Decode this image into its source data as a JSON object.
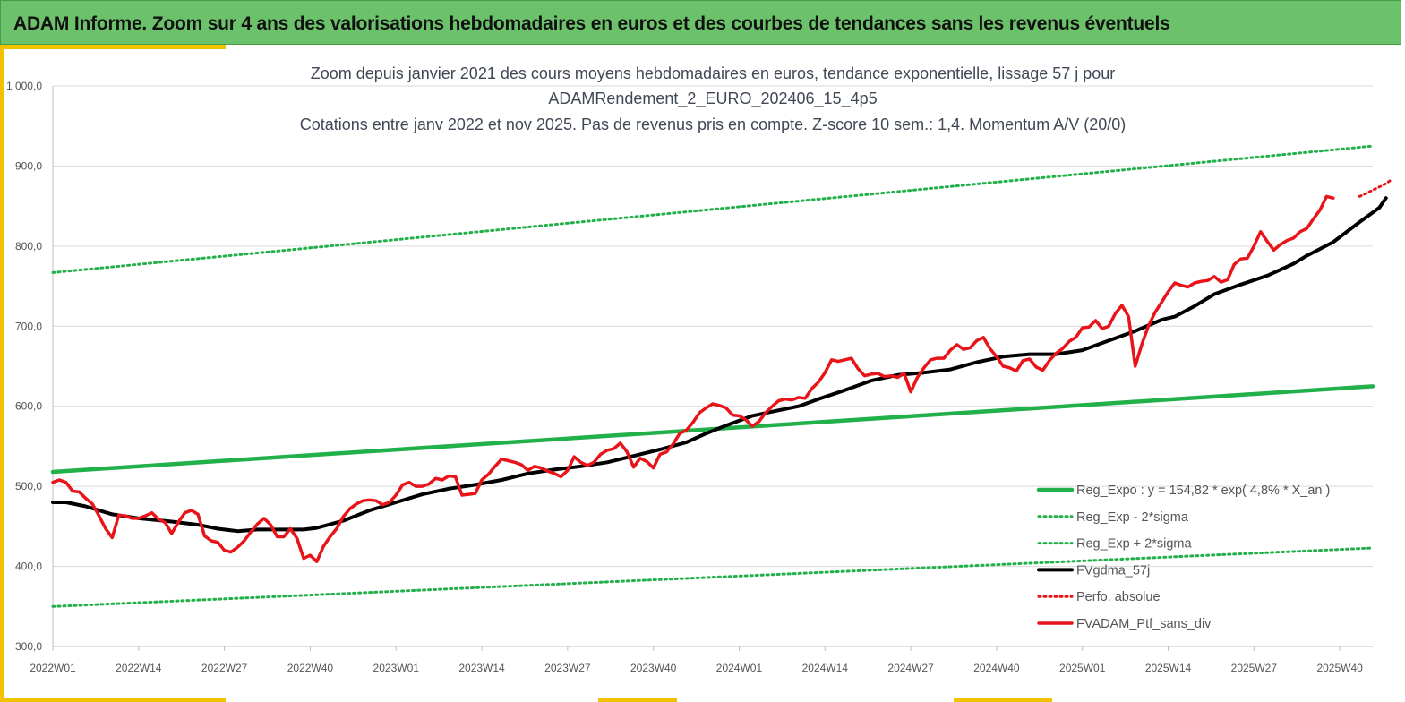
{
  "header": {
    "title": "ADAM Informe. Zoom sur 4 ans des valorisations hebdomadaires en euros et des courbes de tendances sans les revenus éventuels"
  },
  "colors": {
    "banner": "#6cc26a",
    "accent": "#f2c200",
    "reg_expo": "#22b04b",
    "fvgdma": "#000000",
    "ptf": "#e8141a",
    "perfo": "#e8141a"
  },
  "chart_data": {
    "type": "line",
    "title_lines": [
      "Zoom depuis janvier 2021 des cours moyens hebdomadaires  en euros, tendance exponentielle, lissage 57 j pour",
      "ADAMRendement_2_EURO_202406_15_4p5",
      "Cotations  entre janv 2022 et nov 2025. Pas de revenus pris en compte. Z-score 10 sem.: 1,4. Momentum A/V (20/0)"
    ],
    "xlabel": "",
    "ylabel": "",
    "ylim": [
      300,
      1000
    ],
    "yticks": [
      "300,0",
      "400,0",
      "500,0",
      "600,0",
      "700,0",
      "800,0",
      "900,0",
      "1 000,0"
    ],
    "x_range_weeks": [
      0,
      200
    ],
    "xticks": [
      {
        "w": 0,
        "label": "2022W01"
      },
      {
        "w": 13,
        "label": "2022W14"
      },
      {
        "w": 26,
        "label": "2022W27"
      },
      {
        "w": 39,
        "label": "2022W40"
      },
      {
        "w": 52,
        "label": "2023W01"
      },
      {
        "w": 65,
        "label": "2023W14"
      },
      {
        "w": 78,
        "label": "2023W27"
      },
      {
        "w": 91,
        "label": "2023W40"
      },
      {
        "w": 104,
        "label": "2024W01"
      },
      {
        "w": 117,
        "label": "2024W14"
      },
      {
        "w": 130,
        "label": "2024W27"
      },
      {
        "w": 143,
        "label": "2024W40"
      },
      {
        "w": 156,
        "label": "2025W01"
      },
      {
        "w": 169,
        "label": "2025W14"
      },
      {
        "w": 182,
        "label": "2025W27"
      },
      {
        "w": 195,
        "label": "2025W40"
      }
    ],
    "grid": "horizontal",
    "legend_position": "bottom-right",
    "series": [
      {
        "name": "Reg_Expo : y = 154,82 * exp( 4,8% *  X_an )",
        "style": "solid-green",
        "points": [
          [
            0,
            518
          ],
          [
            200,
            625
          ]
        ]
      },
      {
        "name": "Reg_Exp - 2*sigma",
        "style": "dotted-green",
        "points": [
          [
            0,
            350
          ],
          [
            200,
            423
          ]
        ]
      },
      {
        "name": "Reg_Exp + 2*sigma",
        "style": "dotted-green",
        "points": [
          [
            0,
            767
          ],
          [
            200,
            925
          ]
        ]
      },
      {
        "name": "FVgdma_57j",
        "style": "solid-black",
        "points": [
          [
            0,
            480
          ],
          [
            2,
            480
          ],
          [
            5,
            475
          ],
          [
            9,
            465
          ],
          [
            13,
            460
          ],
          [
            18,
            456
          ],
          [
            22,
            452
          ],
          [
            25,
            447
          ],
          [
            28,
            444
          ],
          [
            31,
            446
          ],
          [
            35,
            446
          ],
          [
            38,
            446
          ],
          [
            40,
            448
          ],
          [
            44,
            457
          ],
          [
            48,
            470
          ],
          [
            52,
            480
          ],
          [
            56,
            490
          ],
          [
            60,
            497
          ],
          [
            64,
            502
          ],
          [
            68,
            508
          ],
          [
            72,
            516
          ],
          [
            76,
            521
          ],
          [
            80,
            525
          ],
          [
            84,
            530
          ],
          [
            88,
            538
          ],
          [
            92,
            546
          ],
          [
            96,
            555
          ],
          [
            99,
            566
          ],
          [
            102,
            576
          ],
          [
            106,
            588
          ],
          [
            110,
            595
          ],
          [
            113,
            600
          ],
          [
            116,
            609
          ],
          [
            120,
            620
          ],
          [
            124,
            632
          ],
          [
            128,
            639
          ],
          [
            132,
            642
          ],
          [
            136,
            646
          ],
          [
            140,
            655
          ],
          [
            144,
            662
          ],
          [
            148,
            665
          ],
          [
            152,
            665
          ],
          [
            156,
            670
          ],
          [
            160,
            682
          ],
          [
            164,
            694
          ],
          [
            168,
            708
          ],
          [
            170,
            712
          ],
          [
            173,
            725
          ],
          [
            176,
            740
          ],
          [
            180,
            752
          ],
          [
            184,
            763
          ],
          [
            188,
            778
          ],
          [
            190,
            788
          ],
          [
            194,
            805
          ],
          [
            198,
            830
          ],
          [
            201,
            848
          ],
          [
            202,
            860
          ]
        ]
      },
      {
        "name": "Perfo. absolue",
        "style": "dotted-red",
        "points": [
          [
            198,
            862
          ],
          [
            200,
            870
          ],
          [
            202,
            878
          ],
          [
            203,
            884
          ]
        ]
      },
      {
        "name": "FVADAM_Ptf_sans_div",
        "style": "solid-red",
        "points": [
          [
            0,
            505
          ],
          [
            1,
            508
          ],
          [
            2,
            505
          ],
          [
            3,
            494
          ],
          [
            4,
            493
          ],
          [
            5,
            485
          ],
          [
            6,
            478
          ],
          [
            7,
            463
          ],
          [
            8,
            447
          ],
          [
            9,
            436
          ],
          [
            10,
            464
          ],
          [
            11,
            463
          ],
          [
            12,
            460
          ],
          [
            13,
            460
          ],
          [
            14,
            463
          ],
          [
            15,
            467
          ],
          [
            16,
            459
          ],
          [
            17,
            455
          ],
          [
            18,
            441
          ],
          [
            19,
            455
          ],
          [
            20,
            467
          ],
          [
            21,
            470
          ],
          [
            22,
            465
          ],
          [
            23,
            438
          ],
          [
            24,
            432
          ],
          [
            25,
            430
          ],
          [
            26,
            420
          ],
          [
            27,
            418
          ],
          [
            28,
            424
          ],
          [
            29,
            432
          ],
          [
            30,
            443
          ],
          [
            31,
            453
          ],
          [
            32,
            460
          ],
          [
            33,
            452
          ],
          [
            34,
            437
          ],
          [
            35,
            437
          ],
          [
            36,
            447
          ],
          [
            37,
            435
          ],
          [
            38,
            410
          ],
          [
            39,
            414
          ],
          [
            40,
            406
          ],
          [
            41,
            425
          ],
          [
            42,
            437
          ],
          [
            43,
            447
          ],
          [
            44,
            462
          ],
          [
            45,
            472
          ],
          [
            46,
            478
          ],
          [
            47,
            482
          ],
          [
            48,
            483
          ],
          [
            49,
            482
          ],
          [
            50,
            477
          ],
          [
            51,
            480
          ],
          [
            52,
            489
          ],
          [
            53,
            502
          ],
          [
            54,
            505
          ],
          [
            55,
            500
          ],
          [
            56,
            500
          ],
          [
            57,
            503
          ],
          [
            58,
            510
          ],
          [
            59,
            508
          ],
          [
            60,
            513
          ],
          [
            61,
            512
          ],
          [
            62,
            489
          ],
          [
            63,
            490
          ],
          [
            64,
            491
          ],
          [
            65,
            508
          ],
          [
            66,
            515
          ],
          [
            67,
            525
          ],
          [
            68,
            534
          ],
          [
            69,
            532
          ],
          [
            70,
            530
          ],
          [
            71,
            527
          ],
          [
            72,
            520
          ],
          [
            73,
            525
          ],
          [
            74,
            523
          ],
          [
            75,
            519
          ],
          [
            76,
            516
          ],
          [
            77,
            512
          ],
          [
            78,
            520
          ],
          [
            79,
            537
          ],
          [
            80,
            530
          ],
          [
            81,
            526
          ],
          [
            82,
            530
          ],
          [
            83,
            540
          ],
          [
            84,
            545
          ],
          [
            85,
            547
          ],
          [
            86,
            554
          ],
          [
            87,
            543
          ],
          [
            88,
            524
          ],
          [
            89,
            535
          ],
          [
            90,
            531
          ],
          [
            91,
            523
          ],
          [
            92,
            540
          ],
          [
            93,
            543
          ],
          [
            94,
            553
          ],
          [
            95,
            566
          ],
          [
            96,
            570
          ],
          [
            97,
            580
          ],
          [
            98,
            592
          ],
          [
            99,
            598
          ],
          [
            100,
            603
          ],
          [
            101,
            601
          ],
          [
            102,
            598
          ],
          [
            103,
            589
          ],
          [
            104,
            588
          ],
          [
            105,
            583
          ],
          [
            106,
            575
          ],
          [
            107,
            581
          ],
          [
            108,
            592
          ],
          [
            109,
            600
          ],
          [
            110,
            607
          ],
          [
            111,
            609
          ],
          [
            112,
            608
          ],
          [
            113,
            611
          ],
          [
            114,
            610
          ],
          [
            115,
            622
          ],
          [
            116,
            630
          ],
          [
            117,
            642
          ],
          [
            118,
            658
          ],
          [
            119,
            656
          ],
          [
            120,
            658
          ],
          [
            121,
            660
          ],
          [
            122,
            647
          ],
          [
            123,
            638
          ],
          [
            124,
            640
          ],
          [
            125,
            641
          ],
          [
            126,
            637
          ],
          [
            127,
            638
          ],
          [
            128,
            636
          ],
          [
            129,
            641
          ],
          [
            130,
            618
          ],
          [
            131,
            636
          ],
          [
            132,
            648
          ],
          [
            133,
            658
          ],
          [
            134,
            660
          ],
          [
            135,
            660
          ],
          [
            136,
            670
          ],
          [
            137,
            677
          ],
          [
            138,
            671
          ],
          [
            139,
            673
          ],
          [
            140,
            682
          ],
          [
            141,
            686
          ],
          [
            142,
            672
          ],
          [
            143,
            662
          ],
          [
            144,
            650
          ],
          [
            145,
            648
          ],
          [
            146,
            644
          ],
          [
            147,
            657
          ],
          [
            148,
            659
          ],
          [
            149,
            649
          ],
          [
            150,
            645
          ],
          [
            151,
            657
          ],
          [
            152,
            666
          ],
          [
            153,
            672
          ],
          [
            154,
            681
          ],
          [
            155,
            686
          ],
          [
            156,
            698
          ],
          [
            157,
            699
          ],
          [
            158,
            707
          ],
          [
            159,
            697
          ],
          [
            160,
            700
          ],
          [
            161,
            716
          ],
          [
            162,
            726
          ],
          [
            163,
            712
          ],
          [
            164,
            650
          ],
          [
            165,
            677
          ],
          [
            166,
            700
          ],
          [
            167,
            717
          ],
          [
            168,
            730
          ],
          [
            169,
            743
          ],
          [
            170,
            754
          ],
          [
            171,
            751
          ],
          [
            172,
            749
          ],
          [
            173,
            754
          ],
          [
            174,
            756
          ],
          [
            175,
            757
          ],
          [
            176,
            762
          ],
          [
            177,
            755
          ],
          [
            178,
            758
          ],
          [
            179,
            777
          ],
          [
            180,
            784
          ],
          [
            181,
            785
          ],
          [
            182,
            800
          ],
          [
            183,
            818
          ],
          [
            184,
            806
          ],
          [
            185,
            795
          ],
          [
            186,
            802
          ],
          [
            187,
            807
          ],
          [
            188,
            810
          ],
          [
            189,
            818
          ],
          [
            190,
            822
          ],
          [
            191,
            834
          ],
          [
            192,
            845
          ],
          [
            193,
            862
          ],
          [
            194,
            860
          ]
        ]
      }
    ]
  }
}
